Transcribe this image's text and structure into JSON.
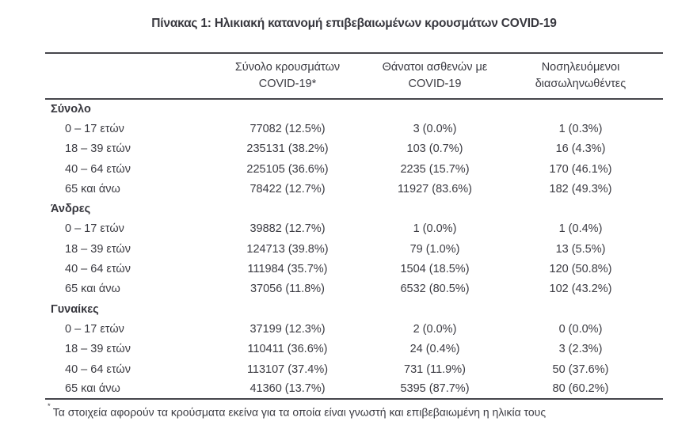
{
  "title": "Πίνακας 1: Ηλικιακή κατανομή επιβεβαιωμένων κρουσμάτων COVID-19",
  "table": {
    "columns": [
      {
        "line1": "Σύνολο κρουσμάτων",
        "line2": "COVID-19*"
      },
      {
        "line1": "Θάνατοι ασθενών με",
        "line2": "COVID-19"
      },
      {
        "line1": "Νοσηλευόμενοι",
        "line2": "διασωληνωθέντες"
      }
    ],
    "sections": [
      {
        "label": "Σύνολο",
        "rows": [
          {
            "age": "0 – 17 ετών",
            "cases": "77082 (12.5%)",
            "deaths": "3 (0.0%)",
            "intubated": "1 (0.3%)"
          },
          {
            "age": "18 – 39 ετών",
            "cases": "235131 (38.2%)",
            "deaths": "103 (0.7%)",
            "intubated": "16 (4.3%)"
          },
          {
            "age": "40 – 64 ετών",
            "cases": "225105 (36.6%)",
            "deaths": "2235 (15.7%)",
            "intubated": "170 (46.1%)"
          },
          {
            "age": "65 και άνω",
            "cases": "78422 (12.7%)",
            "deaths": "11927 (83.6%)",
            "intubated": "182 (49.3%)"
          }
        ]
      },
      {
        "label": "Άνδρες",
        "rows": [
          {
            "age": "0 – 17 ετών",
            "cases": "39882 (12.7%)",
            "deaths": "1 (0.0%)",
            "intubated": "1 (0.4%)"
          },
          {
            "age": "18 – 39 ετών",
            "cases": "124713 (39.8%)",
            "deaths": "79 (1.0%)",
            "intubated": "13 (5.5%)"
          },
          {
            "age": "40 – 64 ετών",
            "cases": "111984 (35.7%)",
            "deaths": "1504 (18.5%)",
            "intubated": "120 (50.8%)"
          },
          {
            "age": "65 και άνω",
            "cases": "37056 (11.8%)",
            "deaths": "6532 (80.5%)",
            "intubated": "102 (43.2%)"
          }
        ]
      },
      {
        "label": "Γυναίκες",
        "rows": [
          {
            "age": "0 – 17 ετών",
            "cases": "37199 (12.3%)",
            "deaths": "2 (0.0%)",
            "intubated": "0 (0.0%)"
          },
          {
            "age": "18 – 39 ετών",
            "cases": "110411 (36.6%)",
            "deaths": "24 (0.4%)",
            "intubated": "3 (2.3%)"
          },
          {
            "age": "40 – 64 ετών",
            "cases": "113107 (37.4%)",
            "deaths": "731 (11.9%)",
            "intubated": "50 (37.6%)"
          },
          {
            "age": "65 και άνω",
            "cases": "41360 (13.7%)",
            "deaths": "5395 (87.7%)",
            "intubated": "80 (60.2%)"
          }
        ]
      }
    ],
    "footnote": {
      "marker": "*",
      "text": "Τα στοιχεία αφορούν τα κρούσματα εκείνα για τα οποία είναι γνωστή και επιβεβαιωμένη η ηλικία τους"
    }
  },
  "colors": {
    "text": "#3b3b42",
    "rule": "#46464c",
    "background": "#ffffff"
  }
}
